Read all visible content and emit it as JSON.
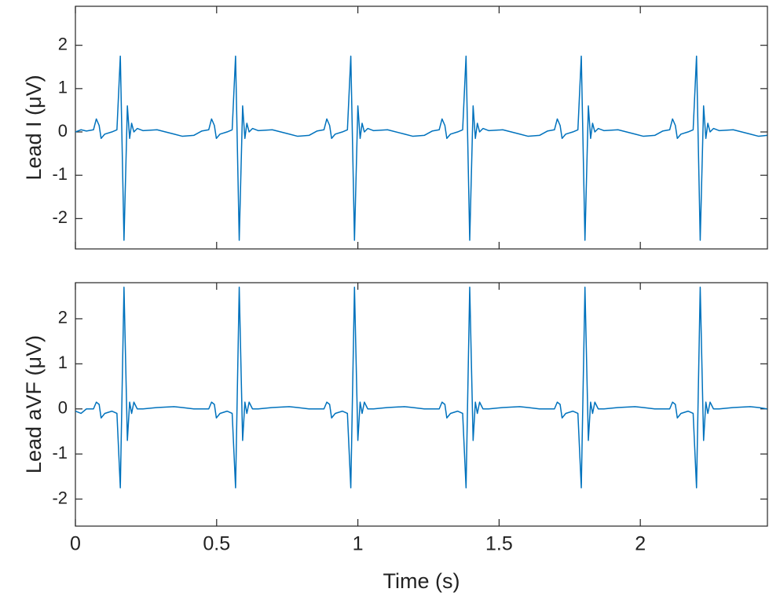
{
  "chart_data": [
    {
      "type": "line",
      "ylabel": "Lead I (μV)",
      "x": [
        0,
        0.02,
        0.039,
        0.064,
        0.074,
        0.084,
        0.091,
        0.104,
        0.129,
        0.147,
        0.159,
        0.172,
        0.184,
        0.192,
        0.199,
        0.207,
        0.219,
        0.239,
        0.289,
        0.349,
        0.379,
        0.419,
        0.447,
        0.472,
        0.482,
        0.492,
        0.499,
        0.512,
        0.537,
        0.555,
        0.567,
        0.58,
        0.592,
        0.6,
        0.607,
        0.615,
        0.627,
        0.647,
        0.697,
        0.757,
        0.787,
        0.827,
        0.855,
        0.88,
        0.89,
        0.9,
        0.907,
        0.92,
        0.945,
        0.963,
        0.975,
        0.988,
        1.0,
        1.008,
        1.015,
        1.023,
        1.035,
        1.055,
        1.105,
        1.165,
        1.195,
        1.235,
        1.263,
        1.288,
        1.298,
        1.308,
        1.315,
        1.328,
        1.353,
        1.371,
        1.383,
        1.396,
        1.408,
        1.416,
        1.423,
        1.431,
        1.443,
        1.463,
        1.513,
        1.573,
        1.603,
        1.643,
        1.671,
        1.696,
        1.706,
        1.716,
        1.723,
        1.736,
        1.761,
        1.779,
        1.791,
        1.804,
        1.816,
        1.824,
        1.831,
        1.839,
        1.851,
        1.871,
        1.921,
        1.981,
        2.011,
        2.051,
        2.079,
        2.104,
        2.114,
        2.124,
        2.131,
        2.144,
        2.169,
        2.187,
        2.199,
        2.212,
        2.224,
        2.232,
        2.239,
        2.247,
        2.259,
        2.279,
        2.329,
        2.389,
        2.419,
        2.449
      ],
      "series": [
        {
          "name": "Lead I",
          "color": "#0072bd",
          "values": [
            0.0,
            0.05,
            0.02,
            0.05,
            0.3,
            0.15,
            -0.15,
            -0.05,
            0.0,
            0.05,
            1.75,
            -2.5,
            0.6,
            -0.15,
            0.2,
            0.0,
            0.08,
            0.03,
            0.05,
            -0.05,
            -0.1,
            -0.08,
            0.02,
            0.05,
            0.3,
            0.15,
            -0.15,
            -0.05,
            0.0,
            0.05,
            1.75,
            -2.5,
            0.6,
            -0.15,
            0.2,
            0.0,
            0.08,
            0.03,
            0.05,
            -0.05,
            -0.1,
            -0.08,
            0.02,
            0.05,
            0.3,
            0.15,
            -0.15,
            -0.05,
            0.0,
            0.05,
            1.75,
            -2.5,
            0.6,
            -0.15,
            0.2,
            0.0,
            0.08,
            0.03,
            0.05,
            -0.05,
            -0.1,
            -0.08,
            0.02,
            0.05,
            0.3,
            0.15,
            -0.15,
            -0.05,
            0.0,
            0.05,
            1.75,
            -2.5,
            0.6,
            -0.15,
            0.2,
            0.0,
            0.08,
            0.03,
            0.05,
            -0.05,
            -0.1,
            -0.08,
            0.02,
            0.05,
            0.3,
            0.15,
            -0.15,
            -0.05,
            0.0,
            0.05,
            1.75,
            -2.5,
            0.6,
            -0.15,
            0.2,
            0.0,
            0.08,
            0.03,
            0.05,
            -0.05,
            -0.1,
            -0.08,
            0.02,
            0.05,
            0.3,
            0.15,
            -0.15,
            -0.05,
            0.0,
            0.05,
            1.75,
            -2.5,
            0.6,
            -0.15,
            0.2,
            0.0,
            0.08,
            0.03,
            0.05,
            -0.05,
            -0.1,
            -0.08
          ]
        }
      ],
      "xlim": [
        0,
        2.45
      ],
      "xticks": [
        0,
        0.5,
        1,
        1.5,
        2
      ],
      "show_xtick_labels": false,
      "ylim": [
        -2.7,
        2.9
      ],
      "yticks": [
        -2,
        -1,
        0,
        1,
        2
      ]
    },
    {
      "type": "line",
      "ylabel": "Lead aVF (μV)",
      "xlabel": "Time (s)",
      "x": [
        0,
        0.02,
        0.039,
        0.064,
        0.074,
        0.084,
        0.091,
        0.104,
        0.129,
        0.147,
        0.159,
        0.172,
        0.184,
        0.192,
        0.199,
        0.207,
        0.219,
        0.239,
        0.289,
        0.349,
        0.379,
        0.419,
        0.447,
        0.472,
        0.482,
        0.492,
        0.499,
        0.512,
        0.537,
        0.555,
        0.567,
        0.58,
        0.592,
        0.6,
        0.607,
        0.615,
        0.627,
        0.647,
        0.697,
        0.757,
        0.787,
        0.827,
        0.855,
        0.88,
        0.89,
        0.9,
        0.907,
        0.92,
        0.945,
        0.963,
        0.975,
        0.988,
        1.0,
        1.008,
        1.015,
        1.023,
        1.035,
        1.055,
        1.105,
        1.165,
        1.195,
        1.235,
        1.263,
        1.288,
        1.298,
        1.308,
        1.315,
        1.328,
        1.353,
        1.371,
        1.383,
        1.396,
        1.408,
        1.416,
        1.423,
        1.431,
        1.443,
        1.463,
        1.513,
        1.573,
        1.603,
        1.643,
        1.671,
        1.696,
        1.706,
        1.716,
        1.723,
        1.736,
        1.761,
        1.779,
        1.791,
        1.804,
        1.816,
        1.824,
        1.831,
        1.839,
        1.851,
        1.871,
        1.921,
        1.981,
        2.011,
        2.051,
        2.079,
        2.104,
        2.114,
        2.124,
        2.131,
        2.144,
        2.169,
        2.187,
        2.199,
        2.212,
        2.224,
        2.232,
        2.239,
        2.247,
        2.259,
        2.279,
        2.329,
        2.389,
        2.419,
        2.449
      ],
      "series": [
        {
          "name": "Lead aVF",
          "color": "#0072bd",
          "values": [
            -0.05,
            -0.1,
            0.0,
            0.0,
            0.15,
            0.1,
            -0.2,
            -0.1,
            -0.05,
            -0.1,
            -1.75,
            2.7,
            -0.7,
            0.15,
            -0.1,
            0.15,
            0.0,
            0.0,
            0.03,
            0.05,
            0.03,
            0.0,
            0.0,
            0.0,
            0.15,
            0.1,
            -0.2,
            -0.1,
            -0.05,
            -0.1,
            -1.75,
            2.7,
            -0.7,
            0.15,
            -0.1,
            0.15,
            0.0,
            0.0,
            0.03,
            0.05,
            0.03,
            0.0,
            0.0,
            0.0,
            0.15,
            0.1,
            -0.2,
            -0.1,
            -0.05,
            -0.1,
            -1.75,
            2.7,
            -0.7,
            0.15,
            -0.1,
            0.15,
            0.0,
            0.0,
            0.03,
            0.05,
            0.03,
            0.0,
            0.0,
            0.0,
            0.15,
            0.1,
            -0.2,
            -0.1,
            -0.05,
            -0.1,
            -1.75,
            2.7,
            -0.7,
            0.15,
            -0.1,
            0.15,
            0.0,
            0.0,
            0.03,
            0.05,
            0.03,
            0.0,
            0.0,
            0.0,
            0.15,
            0.1,
            -0.2,
            -0.1,
            -0.05,
            -0.1,
            -1.75,
            2.7,
            -0.7,
            0.15,
            -0.1,
            0.15,
            0.0,
            0.0,
            0.03,
            0.05,
            0.03,
            0.0,
            0.0,
            0.0,
            0.15,
            0.1,
            -0.2,
            -0.1,
            -0.05,
            -0.1,
            -1.75,
            2.7,
            -0.7,
            0.15,
            -0.1,
            0.15,
            0.0,
            0.0,
            0.03,
            0.05,
            0.03,
            0.0
          ]
        }
      ],
      "xlim": [
        0,
        2.45
      ],
      "xticks": [
        0,
        0.5,
        1,
        1.5,
        2
      ],
      "show_xtick_labels": true,
      "ylim": [
        -2.6,
        2.8
      ],
      "yticks": [
        -2,
        -1,
        0,
        1,
        2
      ]
    }
  ]
}
